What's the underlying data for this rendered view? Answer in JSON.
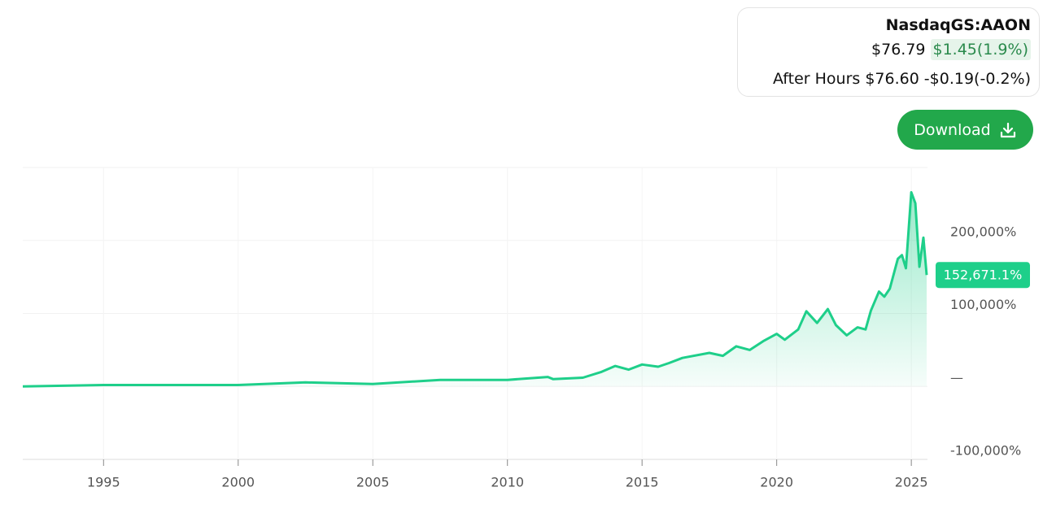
{
  "header": {
    "ticker": "NasdaqGS:AAON",
    "price": "$76.79",
    "change": "$1.45(1.9%)",
    "after_hours_label": "After Hours",
    "after_hours_price": "$76.60",
    "after_hours_change": "-$0.19(-0.2%)",
    "button": "Download"
  },
  "chart_data": {
    "type": "area",
    "color": "#1ecf8a",
    "x": [
      1992,
      1995,
      2000,
      2002.5,
      2005,
      2007.5,
      2010,
      2011.5,
      2011.7,
      2012.8,
      2013.5,
      2014,
      2014.5,
      2015,
      2015.6,
      2016,
      2016.5,
      2017.5,
      2018,
      2018.5,
      2019,
      2019.5,
      2020,
      2020.3,
      2020.8,
      2021.1,
      2021.5,
      2021.9,
      2022.2,
      2022.6,
      2023,
      2023.3,
      2023.5,
      2023.8,
      2024,
      2024.2,
      2024.5,
      2024.65,
      2024.8,
      2025,
      2025.15,
      2025.3,
      2025.45,
      2025.57
    ],
    "values": [
      0,
      2000,
      2000,
      5500,
      3300,
      9000,
      9000,
      13000,
      10000,
      12000,
      20000,
      28000,
      23000,
      30000,
      27000,
      32000,
      39000,
      46000,
      42000,
      55000,
      50000,
      62000,
      72000,
      64000,
      78000,
      103000,
      87000,
      106000,
      84000,
      70000,
      81000,
      78000,
      104000,
      130000,
      123000,
      134000,
      175000,
      180000,
      162000,
      266000,
      251000,
      164000,
      204000,
      152671.1
    ],
    "xlim": [
      1992,
      2025.6
    ],
    "xticks": [
      1995,
      2000,
      2005,
      2010,
      2015,
      2020,
      2025
    ],
    "ylim": [
      -100000,
      300000
    ],
    "yticks": [
      {
        "value": -100000,
        "label": "-100,000%"
      },
      {
        "value": 0,
        "label": "—"
      },
      {
        "value": 100000,
        "label": "100,000%"
      },
      {
        "value": 200000,
        "label": "200,000%"
      }
    ],
    "grid": true,
    "end_label": {
      "value": 152671.1,
      "label": "152,671.1%"
    }
  }
}
